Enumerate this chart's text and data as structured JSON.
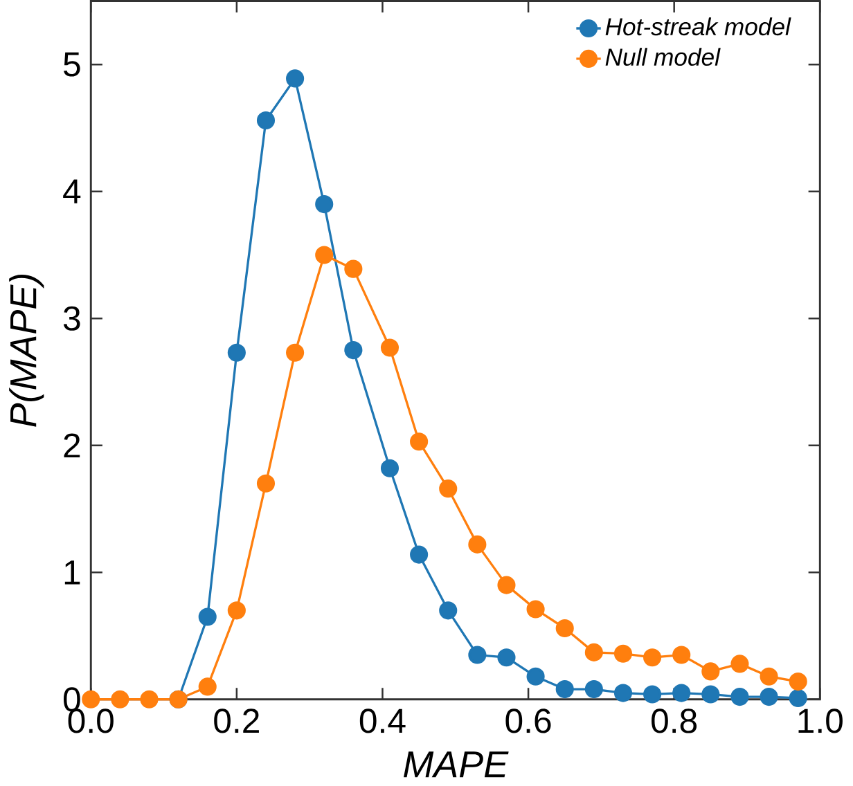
{
  "chart_data": {
    "type": "line",
    "xlabel": "MAPE",
    "ylabel": "P(MAPE)",
    "x": [
      0.0,
      0.04,
      0.08,
      0.12,
      0.16,
      0.2,
      0.24,
      0.28,
      0.32,
      0.36,
      0.41,
      0.45,
      0.49,
      0.53,
      0.57,
      0.61,
      0.65,
      0.69,
      0.73,
      0.77,
      0.81,
      0.85,
      0.89,
      0.93,
      0.97
    ],
    "series": [
      {
        "name": "Hot-streak model",
        "color": "#1f77b4",
        "values": [
          null,
          null,
          null,
          0,
          0.65,
          2.73,
          4.56,
          4.89,
          3.9,
          2.75,
          1.82,
          1.14,
          0.7,
          0.35,
          0.33,
          0.18,
          0.08,
          0.08,
          0.05,
          0.04,
          0.05,
          0.04,
          0.02,
          0.02,
          0.01
        ]
      },
      {
        "name": "Null model",
        "color": "#ff7f0e",
        "values": [
          0,
          0,
          0,
          0,
          0.1,
          0.7,
          1.7,
          2.73,
          3.5,
          3.39,
          2.77,
          2.03,
          1.66,
          1.22,
          0.9,
          0.71,
          0.56,
          0.37,
          0.36,
          0.33,
          0.35,
          0.22,
          0.28,
          0.18,
          0.14
        ]
      }
    ],
    "xlim": [
      0,
      1
    ],
    "ylim": [
      0,
      5.5
    ],
    "xticks": [
      {
        "value": 0,
        "label": "0.0"
      },
      0.2,
      0.4,
      0.6,
      0.8,
      {
        "value": 1,
        "label": "1.0"
      }
    ],
    "yticks": [
      0,
      1,
      2,
      3,
      4,
      5
    ],
    "legend": "top right",
    "marker": "circle",
    "line_style": "solid",
    "grid": false
  }
}
